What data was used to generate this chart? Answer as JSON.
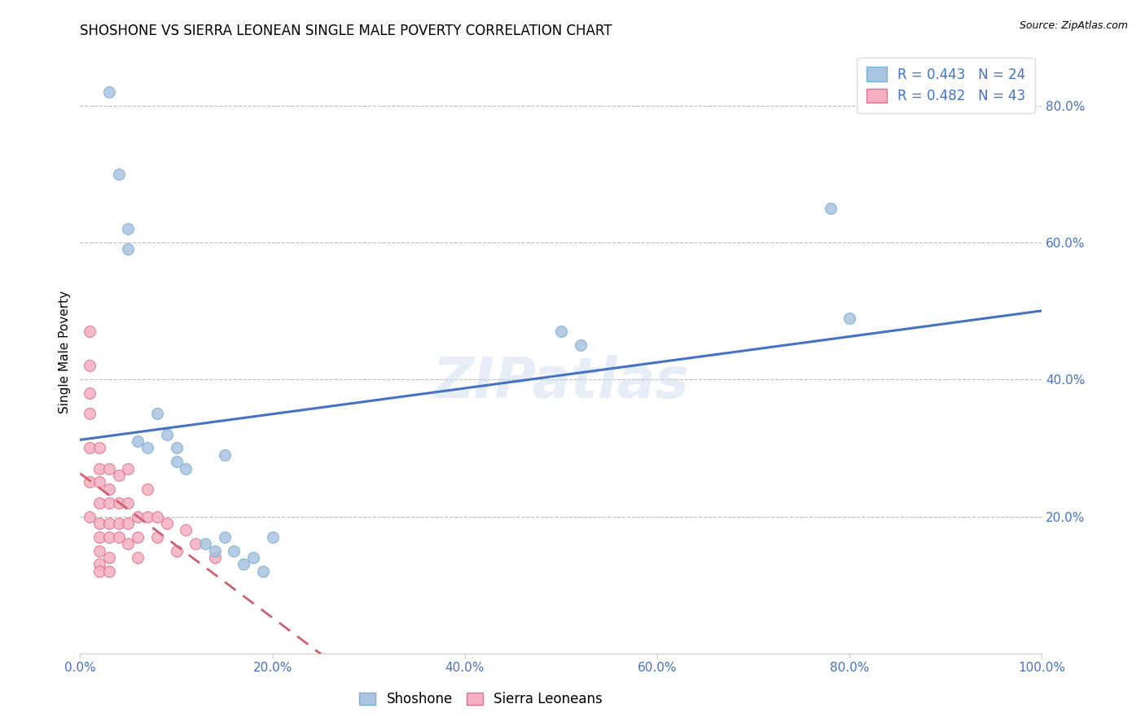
{
  "title": "SHOSHONE VS SIERRA LEONEAN SINGLE MALE POVERTY CORRELATION CHART",
  "source": "Source: ZipAtlas.com",
  "ylabel": "Single Male Poverty",
  "xlim": [
    0.0,
    1.0
  ],
  "ylim": [
    0.0,
    0.88
  ],
  "xticks": [
    0.0,
    0.2,
    0.4,
    0.6,
    0.8,
    1.0
  ],
  "xtick_labels": [
    "0.0%",
    "20.0%",
    "40.0%",
    "60.0%",
    "80.0%",
    "100.0%"
  ],
  "yticks": [
    0.2,
    0.4,
    0.6,
    0.8
  ],
  "ytick_labels": [
    "20.0%",
    "40.0%",
    "60.0%",
    "80.0%"
  ],
  "grid_color": "#bbbbbb",
  "background_color": "#ffffff",
  "shoshone_color": "#a8c4e0",
  "sierra_leonean_color": "#f4b0c0",
  "shoshone_edge_color": "#7aafd4",
  "sierra_leonean_edge_color": "#e07090",
  "trend_shoshone_color": "#4472c4",
  "trend_sierra_leonean_color": "#d06070",
  "tick_color": "#4472c4",
  "legend_text_color": "#4472c4",
  "R_shoshone": 0.443,
  "N_shoshone": 24,
  "R_sierra_leonean": 0.482,
  "N_sierra_leonean": 43,
  "shoshone_x": [
    0.03,
    0.04,
    0.05,
    0.05,
    0.06,
    0.07,
    0.08,
    0.09,
    0.1,
    0.1,
    0.11,
    0.13,
    0.14,
    0.15,
    0.15,
    0.16,
    0.17,
    0.18,
    0.19,
    0.2,
    0.5,
    0.52,
    0.78,
    0.8
  ],
  "shoshone_y": [
    0.82,
    0.7,
    0.62,
    0.59,
    0.31,
    0.3,
    0.35,
    0.32,
    0.3,
    0.28,
    0.27,
    0.16,
    0.15,
    0.29,
    0.17,
    0.15,
    0.13,
    0.14,
    0.12,
    0.17,
    0.47,
    0.45,
    0.65,
    0.49
  ],
  "sierra_leonean_x": [
    0.01,
    0.01,
    0.01,
    0.01,
    0.01,
    0.01,
    0.01,
    0.02,
    0.02,
    0.02,
    0.02,
    0.02,
    0.02,
    0.02,
    0.02,
    0.02,
    0.03,
    0.03,
    0.03,
    0.03,
    0.03,
    0.03,
    0.03,
    0.04,
    0.04,
    0.04,
    0.04,
    0.05,
    0.05,
    0.05,
    0.05,
    0.06,
    0.06,
    0.06,
    0.07,
    0.07,
    0.08,
    0.08,
    0.09,
    0.1,
    0.11,
    0.12,
    0.14
  ],
  "sierra_leonean_y": [
    0.47,
    0.42,
    0.38,
    0.35,
    0.3,
    0.25,
    0.2,
    0.3,
    0.27,
    0.25,
    0.22,
    0.19,
    0.17,
    0.15,
    0.13,
    0.12,
    0.27,
    0.24,
    0.22,
    0.19,
    0.17,
    0.14,
    0.12,
    0.26,
    0.22,
    0.19,
    0.17,
    0.27,
    0.22,
    0.19,
    0.16,
    0.2,
    0.17,
    0.14,
    0.24,
    0.2,
    0.2,
    0.17,
    0.19,
    0.15,
    0.18,
    0.16,
    0.14
  ],
  "watermark": "ZIPatlas",
  "marker_size": 100,
  "title_fontsize": 12,
  "axis_label_fontsize": 11,
  "tick_fontsize": 11,
  "legend_fontsize": 12
}
